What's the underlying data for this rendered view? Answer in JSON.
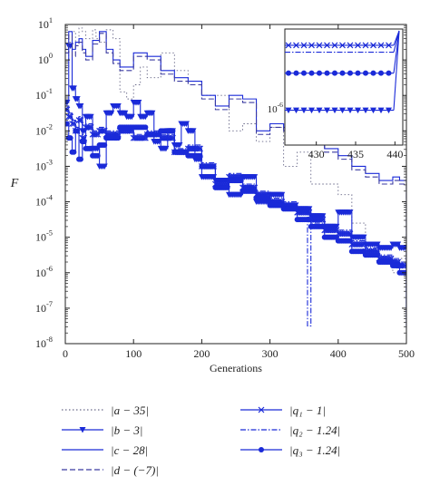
{
  "chart_data": {
    "type": "line",
    "xlabel": "Generations",
    "ylabel": "F",
    "x_ticks": [
      "0",
      "100",
      "200",
      "300",
      "400",
      "500"
    ],
    "y_ticks": [
      "10^1",
      "10^0",
      "10^-1",
      "10^-2",
      "10^-3",
      "10^-4",
      "10^-5",
      "10^-6",
      "10^-7",
      "10^-8"
    ],
    "xlim": [
      0,
      500
    ],
    "ylim_log10": [
      -8,
      1
    ],
    "y_scale": "log",
    "grid": false,
    "legend_position": "below",
    "series": [
      {
        "name": "|a − 35|",
        "style": "dotted",
        "marker": "none",
        "color": "#6a6a8a",
        "x": [
          0,
          5,
          10,
          15,
          20,
          25,
          30,
          40,
          45,
          50,
          60,
          70,
          80,
          90,
          100,
          110,
          120,
          140,
          160,
          180,
          200,
          220,
          240,
          260,
          280,
          300,
          320,
          340,
          360,
          380,
          400,
          420,
          440,
          460,
          480,
          490,
          500
        ],
        "y_log10": [
          -0.2,
          0.5,
          0.8,
          0.4,
          0.9,
          0.8,
          0.6,
          0.85,
          0.6,
          0.5,
          0.85,
          0.6,
          -0.9,
          -1.1,
          -0.7,
          -0.2,
          -0.5,
          0.2,
          -0.3,
          -0.6,
          -1.0,
          -1.0,
          -2.0,
          -1.8,
          -2.3,
          -1.9,
          -3.0,
          -2.6,
          -3.5,
          -3.5,
          -3.8,
          -4.6,
          -5.2,
          -5.6,
          -6.0,
          -5.6,
          -5.6
        ]
      },
      {
        "name": "|b − 3|",
        "style": "solid",
        "marker": "triangle-down",
        "color": "#1a2ad8",
        "x": [
          0,
          5,
          10,
          15,
          20,
          25,
          30,
          40,
          50,
          60,
          70,
          80,
          90,
          100,
          110,
          120,
          130,
          140,
          150,
          160,
          170,
          180,
          190,
          200,
          220,
          240,
          260,
          280,
          300,
          320,
          340,
          360,
          380,
          400,
          420,
          440,
          460,
          480,
          490,
          500
        ],
        "y_log10": [
          -1.2,
          0.4,
          -0.8,
          -1.1,
          -1.3,
          -2.0,
          -1.6,
          -2.5,
          -3.0,
          -1.5,
          -1.3,
          -1.5,
          -1.6,
          -1.2,
          -1.6,
          -1.5,
          -2.3,
          -2.5,
          -2.0,
          -2.4,
          -1.8,
          -2.0,
          -2.8,
          -3.3,
          -3.4,
          -3.8,
          -3.3,
          -4.0,
          -3.8,
          -4.1,
          -4.2,
          -4.4,
          -4.7,
          -4.3,
          -5.0,
          -5.2,
          -5.3,
          -5.2,
          -5.3,
          -7.0
        ]
      },
      {
        "name": "|c − 28|",
        "style": "solid",
        "marker": "none",
        "color": "#1a2ad8",
        "x": [
          0,
          5,
          10,
          15,
          20,
          25,
          30,
          40,
          50,
          60,
          70,
          80,
          100,
          120,
          140,
          160,
          180,
          200,
          220,
          240,
          260,
          280,
          300,
          320,
          340,
          360,
          380,
          400,
          420,
          440,
          460,
          480,
          490,
          500
        ],
        "y_log10": [
          0.3,
          0.8,
          0.3,
          0.5,
          0.6,
          0.3,
          0.1,
          0.55,
          0.8,
          0.3,
          0.0,
          -0.2,
          0.2,
          0.1,
          -0.3,
          -0.5,
          -0.6,
          -1.0,
          -1.3,
          -1.0,
          -1.1,
          -2.0,
          -1.8,
          -1.9,
          -2.1,
          -2.2,
          -2.5,
          -2.7,
          -3.0,
          -3.2,
          -3.4,
          -3.3,
          -3.4,
          -5.8
        ]
      },
      {
        "name": "|d − (−7)|",
        "style": "dashed",
        "marker": "none",
        "color": "#3a3aa0",
        "x": [
          0,
          5,
          10,
          15,
          20,
          25,
          30,
          40,
          50,
          60,
          70,
          80,
          100,
          120,
          140,
          160,
          180,
          200,
          220,
          240,
          260,
          280,
          300,
          320,
          340,
          360,
          380,
          400,
          420,
          440,
          460,
          480,
          490,
          500
        ],
        "y_log10": [
          0.2,
          0.7,
          0.1,
          0.4,
          0.5,
          0.2,
          0.0,
          0.45,
          0.75,
          0.2,
          -0.1,
          -0.3,
          0.1,
          0.0,
          -0.4,
          -0.6,
          -0.7,
          -1.1,
          -1.4,
          -1.1,
          -1.2,
          -2.1,
          -1.9,
          -2.0,
          -2.2,
          -2.3,
          -2.6,
          -2.8,
          -3.1,
          -3.3,
          -3.5,
          -3.4,
          -3.5,
          -6.0
        ]
      },
      {
        "name": "|q₁ − 1|",
        "style": "solid",
        "marker": "x",
        "color": "#1a2ad8",
        "x": [
          0,
          5,
          10,
          15,
          20,
          25,
          30,
          40,
          50,
          60,
          80,
          100,
          120,
          140,
          160,
          180,
          200,
          220,
          240,
          260,
          280,
          300,
          320,
          340,
          360,
          380,
          400,
          420,
          440,
          460,
          480,
          490,
          500
        ],
        "y_log10": [
          -1.4,
          -1.6,
          -1.8,
          -2.0,
          -1.7,
          -2.2,
          -1.9,
          -2.1,
          -2.0,
          -2.1,
          -2.0,
          -2.2,
          -2.1,
          -2.2,
          -2.6,
          -2.5,
          -3.0,
          -3.5,
          -3.3,
          -3.6,
          -3.8,
          -4.0,
          -4.1,
          -4.3,
          -4.5,
          -4.8,
          -4.9,
          -5.2,
          -5.4,
          -5.6,
          -5.7,
          -5.8,
          -7.5
        ]
      },
      {
        "name": "|q₂ − 1.24|",
        "style": "dashdot",
        "marker": "none",
        "color": "#1a2ad8",
        "x": [
          0,
          5,
          10,
          15,
          20,
          25,
          30,
          40,
          50,
          60,
          80,
          100,
          120,
          140,
          160,
          180,
          200,
          220,
          240,
          260,
          280,
          300,
          320,
          340,
          355,
          360,
          380,
          400,
          420,
          440,
          460,
          480,
          490,
          500
        ],
        "y_log10": [
          -1.3,
          -1.5,
          -1.7,
          -1.9,
          -1.6,
          -2.1,
          -1.8,
          -2.0,
          -1.9,
          -2.0,
          -1.9,
          -2.1,
          -2.0,
          -2.1,
          -2.5,
          -2.4,
          -2.9,
          -3.4,
          -3.2,
          -3.5,
          -3.7,
          -3.9,
          -4.0,
          -4.2,
          -7.5,
          -4.6,
          -4.7,
          -4.8,
          -5.1,
          -5.3,
          -5.5,
          -5.6,
          -5.7,
          -7.3
        ]
      },
      {
        "name": "|q₃ − 1.24|",
        "style": "solid",
        "marker": "dot",
        "color": "#1a2ad8",
        "x": [
          0,
          5,
          10,
          15,
          20,
          25,
          30,
          40,
          50,
          60,
          80,
          100,
          120,
          140,
          160,
          180,
          200,
          220,
          240,
          260,
          280,
          300,
          320,
          340,
          360,
          380,
          400,
          420,
          440,
          460,
          480,
          490,
          500
        ],
        "y_log10": [
          -1.8,
          -2.2,
          -2.6,
          -2.0,
          -2.8,
          -2.3,
          -2.5,
          -2.7,
          -2.4,
          -2.2,
          -1.9,
          -1.9,
          -2.1,
          -2.0,
          -2.6,
          -2.7,
          -3.0,
          -3.6,
          -3.4,
          -3.7,
          -3.9,
          -4.1,
          -4.2,
          -4.5,
          -4.7,
          -5.0,
          -5.1,
          -5.4,
          -5.5,
          -5.7,
          -5.8,
          -6.0,
          -7.6
        ]
      }
    ],
    "inset": {
      "x_ticks": [
        "430",
        "435",
        "440"
      ],
      "xlim": [
        426,
        441
      ],
      "y_tick_label": "10^-6",
      "series_levels": [
        {
          "series": "|q₁ − 1|",
          "y": 0.86
        },
        {
          "series": "|q₂ − 1.24|",
          "y": 0.8
        },
        {
          "series": "|q₃ − 1.24|",
          "y": 0.62
        },
        {
          "series": "|b − 3|",
          "y": 0.3
        }
      ]
    }
  }
}
